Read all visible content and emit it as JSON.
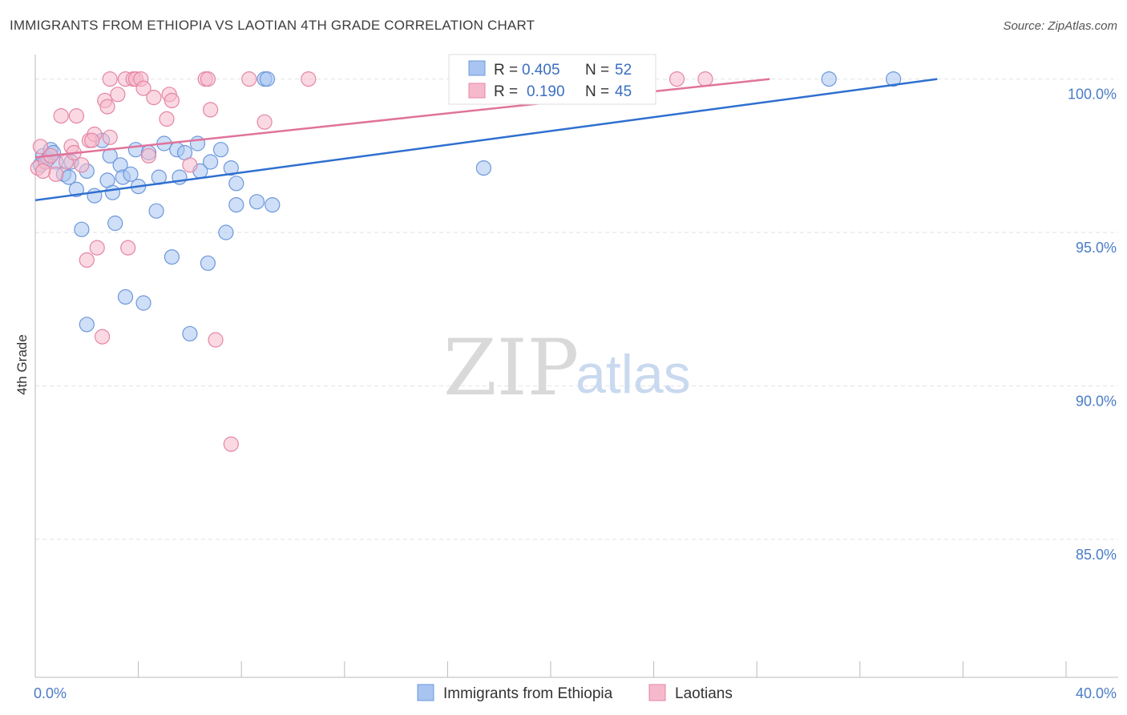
{
  "title": "IMMIGRANTS FROM ETHIOPIA VS LAOTIAN 4TH GRADE CORRELATION CHART",
  "source": "Source: ZipAtlas.com",
  "watermark": {
    "zip": "ZIP",
    "atlas": "atlas"
  },
  "legend": {
    "r_label": "R =",
    "n_label": "N =",
    "items": [
      {
        "name": "Immigrants from Ethiopia",
        "r": "0.405",
        "n": "52",
        "color": "#a8c4f0",
        "stroke": "#6c98dc"
      },
      {
        "name": "Laotians",
        "r": "0.190",
        "n": "45",
        "color": "#f6b9cc",
        "stroke": "#e585a5"
      }
    ]
  },
  "chart_data": {
    "type": "scatter",
    "ylabel": "4th Grade",
    "xlim": [
      0,
      40
    ],
    "ylim": [
      80.5,
      100.8
    ],
    "y_ticks": [
      {
        "value": 100,
        "label": "100.0%"
      },
      {
        "value": 95,
        "label": "95.0%"
      },
      {
        "value": 90,
        "label": "90.0%"
      },
      {
        "value": 85,
        "label": "85.0%"
      }
    ],
    "x_ticks_labeled": [
      {
        "value": 0,
        "label": "0.0%"
      },
      {
        "value": 40,
        "label": "40.0%"
      }
    ],
    "x_minor_ticks": [
      0,
      4,
      8,
      12,
      16,
      20,
      24,
      28,
      32,
      36,
      40
    ],
    "grid": true,
    "series": [
      {
        "name": "Immigrants from Ethiopia",
        "color": "#a8c4f0",
        "stroke": "#6c98dc",
        "line_color": "#2f6fd0",
        "trend": {
          "x0": 0,
          "y0": 96.05,
          "x1": 35.0,
          "y1": 100.0
        },
        "points": [
          [
            0.2,
            97.2
          ],
          [
            0.3,
            97.5
          ],
          [
            0.5,
            97.4
          ],
          [
            0.6,
            97.7
          ],
          [
            0.7,
            97.6
          ],
          [
            0.8,
            97.3
          ],
          [
            1.1,
            96.9
          ],
          [
            1.3,
            96.8
          ],
          [
            1.4,
            97.3
          ],
          [
            1.6,
            96.4
          ],
          [
            1.8,
            95.1
          ],
          [
            2.0,
            97.0
          ],
          [
            2.3,
            96.2
          ],
          [
            2.6,
            98.0
          ],
          [
            2.8,
            96.7
          ],
          [
            2.9,
            97.5
          ],
          [
            3.0,
            96.3
          ],
          [
            3.1,
            95.3
          ],
          [
            3.3,
            97.2
          ],
          [
            3.4,
            96.8
          ],
          [
            3.5,
            92.9
          ],
          [
            3.7,
            96.9
          ],
          [
            3.9,
            97.7
          ],
          [
            4.0,
            96.5
          ],
          [
            4.2,
            92.7
          ],
          [
            4.4,
            97.6
          ],
          [
            4.7,
            95.7
          ],
          [
            4.8,
            96.8
          ],
          [
            5.0,
            97.9
          ],
          [
            5.3,
            94.2
          ],
          [
            5.5,
            97.7
          ],
          [
            5.6,
            96.8
          ],
          [
            5.8,
            97.6
          ],
          [
            6.0,
            91.7
          ],
          [
            6.3,
            97.9
          ],
          [
            6.4,
            97.0
          ],
          [
            6.7,
            94.0
          ],
          [
            6.8,
            97.3
          ],
          [
            7.2,
            97.7
          ],
          [
            7.4,
            95.0
          ],
          [
            7.6,
            97.1
          ],
          [
            7.8,
            96.6
          ],
          [
            7.8,
            95.9
          ],
          [
            8.6,
            96.0
          ],
          [
            8.9,
            100.0
          ],
          [
            9.0,
            100.0
          ],
          [
            9.2,
            95.9
          ],
          [
            2.0,
            92.0
          ],
          [
            17.4,
            97.1
          ],
          [
            23.4,
            100.0
          ],
          [
            30.8,
            100.0
          ],
          [
            33.3,
            100.0
          ]
        ]
      },
      {
        "name": "Laotians",
        "color": "#f6b9cc",
        "stroke": "#e585a5",
        "line_color": "#e0739a",
        "trend": {
          "x0": 0,
          "y0": 97.45,
          "x1": 28.5,
          "y1": 100.0
        },
        "points": [
          [
            0.1,
            97.1
          ],
          [
            0.2,
            97.8
          ],
          [
            0.4,
            97.3
          ],
          [
            0.6,
            97.5
          ],
          [
            0.8,
            96.9
          ],
          [
            1.0,
            98.8
          ],
          [
            1.2,
            97.3
          ],
          [
            1.4,
            97.8
          ],
          [
            1.6,
            98.8
          ],
          [
            1.8,
            97.2
          ],
          [
            2.0,
            94.1
          ],
          [
            2.1,
            98.0
          ],
          [
            2.3,
            98.2
          ],
          [
            2.4,
            94.5
          ],
          [
            2.6,
            91.6
          ],
          [
            2.7,
            99.3
          ],
          [
            2.8,
            99.1
          ],
          [
            2.9,
            98.1
          ],
          [
            2.9,
            100.0
          ],
          [
            3.2,
            99.5
          ],
          [
            3.5,
            100.0
          ],
          [
            3.6,
            94.5
          ],
          [
            3.8,
            100.0
          ],
          [
            3.9,
            100.0
          ],
          [
            4.1,
            100.0
          ],
          [
            4.2,
            99.7
          ],
          [
            4.4,
            97.5
          ],
          [
            4.6,
            99.4
          ],
          [
            5.1,
            98.7
          ],
          [
            5.2,
            99.5
          ],
          [
            5.3,
            99.3
          ],
          [
            6.0,
            97.2
          ],
          [
            6.6,
            100.0
          ],
          [
            6.7,
            100.0
          ],
          [
            6.8,
            99.0
          ],
          [
            7.0,
            91.5
          ],
          [
            7.6,
            88.1
          ],
          [
            8.3,
            100.0
          ],
          [
            8.9,
            98.6
          ],
          [
            10.6,
            100.0
          ],
          [
            24.9,
            100.0
          ],
          [
            26.0,
            100.0
          ],
          [
            1.5,
            97.6
          ],
          [
            0.3,
            97.0
          ],
          [
            2.2,
            98.0
          ]
        ]
      }
    ]
  }
}
